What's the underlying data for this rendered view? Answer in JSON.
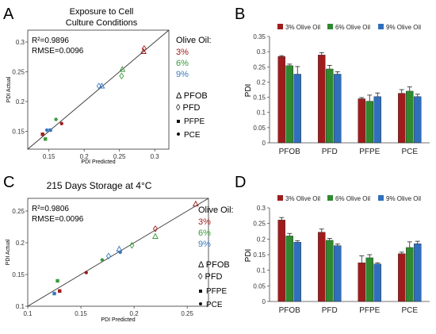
{
  "figure": {
    "panels": [
      {
        "letter": "A",
        "title": "Exposure to Cell Culture Conditions",
        "r2": "R²=0.9896",
        "rmse": "RMSE=0.0096",
        "legend_title": "Olive Oil:",
        "oils": [
          {
            "label": "3%",
            "color": "#a01c1c"
          },
          {
            "label": "6%",
            "color": "#3a9a3a"
          },
          {
            "label": "9%",
            "color": "#3a78c0"
          }
        ],
        "shapes": [
          {
            "label": "Δ PFOB"
          },
          {
            "label": "◊ PFD"
          },
          {
            "label": "PFPE"
          },
          {
            "label": "PCE"
          }
        ]
      },
      {
        "letter": "B",
        "legend": [
          "3% Olive Oil",
          "6% Olive Oil",
          "9% Olive Oil"
        ],
        "colors": [
          "#a01c1c",
          "#2e8a2e",
          "#2f6fbd"
        ]
      },
      {
        "letter": "C",
        "title": "215 Days Storage at 4°C",
        "r2": "R²=0.9806",
        "rmse": "RMSE=0.0096",
        "legend_title": "Olive Oil:",
        "oils": [
          {
            "label": "3%",
            "color": "#a01c1c"
          },
          {
            "label": "6%",
            "color": "#3a9a3a"
          },
          {
            "label": "9%",
            "color": "#3a78c0"
          }
        ],
        "shapes": [
          {
            "label": "Δ PFOB"
          },
          {
            "label": "◊ PFD"
          },
          {
            "label": "PFPE"
          },
          {
            "label": "PCE"
          }
        ]
      },
      {
        "letter": "D",
        "legend": [
          "3% Olive Oil",
          "6% Olive Oil",
          "9% Olive Oil"
        ],
        "colors": [
          "#a01c1c",
          "#2e8a2e",
          "#2f6fbd"
        ]
      }
    ]
  },
  "chart_data": [
    {
      "type": "scatter",
      "title": "Exposure to Cell Culture Conditions",
      "xlabel": "PDI Predicted",
      "ylabel": "PDI Actual",
      "xlim": [
        0.12,
        0.32
      ],
      "ylim": [
        0.12,
        0.32
      ],
      "xticks": [
        "0.15",
        "0.2",
        "0.25",
        "0.3"
      ],
      "yticks": [
        "0.15",
        "0.2",
        "0.25",
        "0.3"
      ],
      "xtick_values": [
        0.15,
        0.2,
        0.25,
        0.3
      ],
      "ytick_values": [
        0.15,
        0.2,
        0.25,
        0.3
      ],
      "identity_line": true,
      "points": [
        {
          "x": 0.284,
          "y": 0.284,
          "oil": "3%",
          "shape": "triangle"
        },
        {
          "x": 0.285,
          "y": 0.289,
          "oil": "3%",
          "shape": "diamond"
        },
        {
          "x": 0.141,
          "y": 0.145,
          "oil": "3%",
          "shape": "square"
        },
        {
          "x": 0.168,
          "y": 0.163,
          "oil": "3%",
          "shape": "circle"
        },
        {
          "x": 0.254,
          "y": 0.254,
          "oil": "6%",
          "shape": "triangle"
        },
        {
          "x": 0.253,
          "y": 0.243,
          "oil": "6%",
          "shape": "diamond"
        },
        {
          "x": 0.145,
          "y": 0.137,
          "oil": "6%",
          "shape": "square"
        },
        {
          "x": 0.16,
          "y": 0.17,
          "oil": "6%",
          "shape": "circle"
        },
        {
          "x": 0.225,
          "y": 0.226,
          "oil": "9%",
          "shape": "triangle"
        },
        {
          "x": 0.221,
          "y": 0.226,
          "oil": "9%",
          "shape": "diamond"
        },
        {
          "x": 0.152,
          "y": 0.152,
          "oil": "9%",
          "shape": "square"
        },
        {
          "x": 0.147,
          "y": 0.152,
          "oil": "9%",
          "shape": "circle"
        }
      ]
    },
    {
      "type": "bar",
      "ylabel": "PDI",
      "ylim": [
        0,
        0.35
      ],
      "yticks": [
        "0",
        "0.05",
        "0.1",
        "0.15",
        "0.2",
        "0.25",
        "0.3",
        "0.35"
      ],
      "ytick_values": [
        0,
        0.05,
        0.1,
        0.15,
        0.2,
        0.25,
        0.3,
        0.35
      ],
      "categories": [
        "PFOB",
        "PFD",
        "PFPE",
        "PCE"
      ],
      "legend_position": "top",
      "series": [
        {
          "name": "3% Olive Oil",
          "values": [
            0.284,
            0.289,
            0.145,
            0.163
          ],
          "errors": [
            0.003,
            0.008,
            0.004,
            0.012
          ]
        },
        {
          "name": "6% Olive Oil",
          "values": [
            0.254,
            0.243,
            0.137,
            0.17
          ],
          "errors": [
            0.005,
            0.012,
            0.02,
            0.014
          ]
        },
        {
          "name": "9% Olive Oil",
          "values": [
            0.226,
            0.226,
            0.152,
            0.152
          ],
          "errors": [
            0.025,
            0.008,
            0.012,
            0.008
          ]
        }
      ]
    },
    {
      "type": "scatter",
      "title": "215 Days Storage at 4°C",
      "xlabel": "PDI Predicted",
      "ylabel": "PDI Actual",
      "xlim": [
        0.1,
        0.27
      ],
      "ylim": [
        0.1,
        0.27
      ],
      "xticks": [
        "0.1",
        "0.15",
        "0.2",
        "0.25"
      ],
      "yticks": [
        "0.1",
        "0.15",
        "0.2",
        "0.25"
      ],
      "xtick_values": [
        0.1,
        0.15,
        0.2,
        0.25
      ],
      "ytick_values": [
        0.1,
        0.15,
        0.2,
        0.25
      ],
      "identity_line": true,
      "points": [
        {
          "x": 0.258,
          "y": 0.261,
          "oil": "3%",
          "shape": "triangle"
        },
        {
          "x": 0.22,
          "y": 0.222,
          "oil": "3%",
          "shape": "diamond"
        },
        {
          "x": 0.13,
          "y": 0.124,
          "oil": "3%",
          "shape": "square"
        },
        {
          "x": 0.155,
          "y": 0.153,
          "oil": "3%",
          "shape": "circle"
        },
        {
          "x": 0.22,
          "y": 0.21,
          "oil": "6%",
          "shape": "triangle"
        },
        {
          "x": 0.198,
          "y": 0.196,
          "oil": "6%",
          "shape": "diamond"
        },
        {
          "x": 0.128,
          "y": 0.14,
          "oil": "6%",
          "shape": "square"
        },
        {
          "x": 0.17,
          "y": 0.173,
          "oil": "6%",
          "shape": "circle"
        },
        {
          "x": 0.186,
          "y": 0.19,
          "oil": "9%",
          "shape": "triangle"
        },
        {
          "x": 0.176,
          "y": 0.179,
          "oil": "9%",
          "shape": "diamond"
        },
        {
          "x": 0.125,
          "y": 0.12,
          "oil": "9%",
          "shape": "square"
        },
        {
          "x": 0.187,
          "y": 0.185,
          "oil": "9%",
          "shape": "circle"
        }
      ]
    },
    {
      "type": "bar",
      "ylabel": "PDI",
      "ylim": [
        0,
        0.3
      ],
      "yticks": [
        "0",
        "0.05",
        "0.1",
        "0.15",
        "0.2",
        "0.25",
        "0.3"
      ],
      "ytick_values": [
        0,
        0.05,
        0.1,
        0.15,
        0.2,
        0.25,
        0.3
      ],
      "categories": [
        "PFOB",
        "PFD",
        "PFPE",
        "PCE"
      ],
      "legend_position": "top",
      "series": [
        {
          "name": "3% Olive Oil",
          "values": [
            0.261,
            0.222,
            0.124,
            0.153
          ],
          "errors": [
            0.008,
            0.01,
            0.022,
            0.005
          ]
        },
        {
          "name": "6% Olive Oil",
          "values": [
            0.21,
            0.196,
            0.14,
            0.173
          ],
          "errors": [
            0.008,
            0.006,
            0.01,
            0.018
          ]
        },
        {
          "name": "9% Olive Oil",
          "values": [
            0.19,
            0.179,
            0.12,
            0.185
          ],
          "errors": [
            0.005,
            0.005,
            0.004,
            0.008
          ]
        }
      ]
    }
  ]
}
